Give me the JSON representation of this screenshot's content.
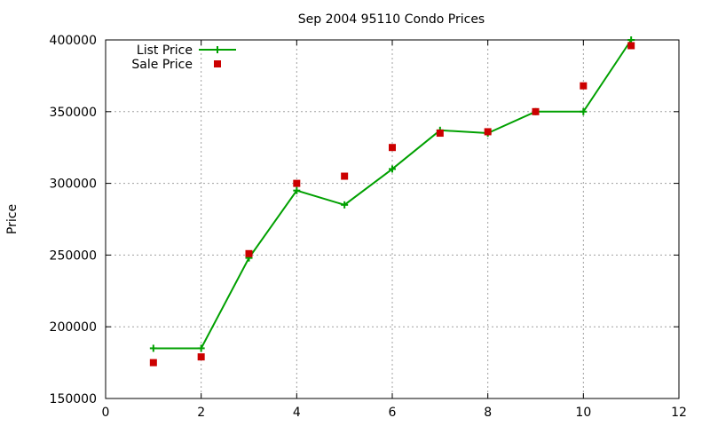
{
  "chart_data": {
    "type": "line",
    "title": "Sep 2004 95110 Condo Prices",
    "xlabel": "",
    "ylabel": "Price",
    "xlim": [
      0,
      12
    ],
    "ylim": [
      150000,
      400000
    ],
    "xticks": [
      0,
      2,
      4,
      6,
      8,
      10,
      12
    ],
    "yticks": [
      150000,
      200000,
      250000,
      300000,
      350000,
      400000
    ],
    "grid": true,
    "legend_position": "top-left",
    "series": [
      {
        "name": "List Price",
        "style": "line+cross",
        "color": "#00a000",
        "x": [
          1,
          2,
          3,
          4,
          5,
          6,
          7,
          8,
          9,
          10,
          11
        ],
        "y": [
          185000,
          185000,
          248000,
          295000,
          285000,
          310000,
          337000,
          335000,
          350000,
          350000,
          400000
        ]
      },
      {
        "name": "Sale Price",
        "style": "square-points",
        "color": "#cc0000",
        "x": [
          1,
          2,
          3,
          4,
          5,
          6,
          7,
          8,
          9,
          10,
          11
        ],
        "y": [
          175000,
          179000,
          251000,
          300000,
          305000,
          325000,
          335000,
          336000,
          350000,
          368000,
          396000
        ]
      }
    ]
  }
}
